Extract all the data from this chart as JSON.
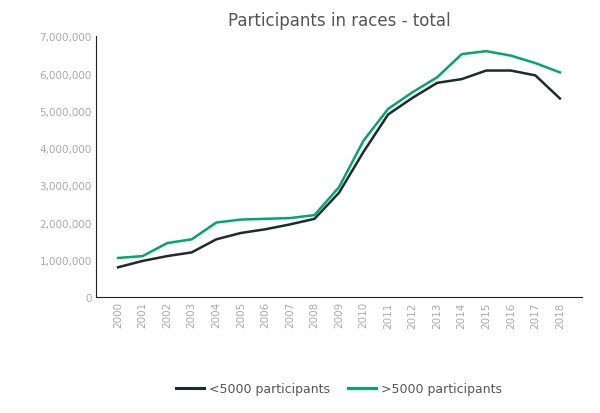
{
  "title": "Participants in races - total",
  "years": [
    2000,
    2001,
    2002,
    2003,
    2004,
    2005,
    2006,
    2007,
    2008,
    2009,
    2010,
    2011,
    2012,
    2013,
    2014,
    2015,
    2016,
    2017,
    2018
  ],
  "less5000": [
    800000,
    970000,
    1100000,
    1200000,
    1550000,
    1720000,
    1820000,
    1950000,
    2100000,
    2800000,
    3900000,
    4900000,
    5350000,
    5750000,
    5850000,
    6080000,
    6080000,
    5950000,
    5330000
  ],
  "more5000": [
    1050000,
    1100000,
    1450000,
    1550000,
    2000000,
    2080000,
    2100000,
    2120000,
    2200000,
    2950000,
    4200000,
    5050000,
    5500000,
    5900000,
    6520000,
    6600000,
    6480000,
    6280000,
    6030000
  ],
  "less5000_color": "#1c2b30",
  "more5000_color": "#00a86b",
  "legend_less": "<5000 participants",
  "legend_more": ">5000 participants",
  "ylim": [
    0,
    7000000
  ],
  "yticks": [
    0,
    1000000,
    2000000,
    3000000,
    4000000,
    5000000,
    6000000,
    7000000
  ],
  "background_color": "#ffffff",
  "line_width": 1.8,
  "tick_color": "#aaaaaa",
  "title_color": "#555555",
  "spine_color": "#222222"
}
